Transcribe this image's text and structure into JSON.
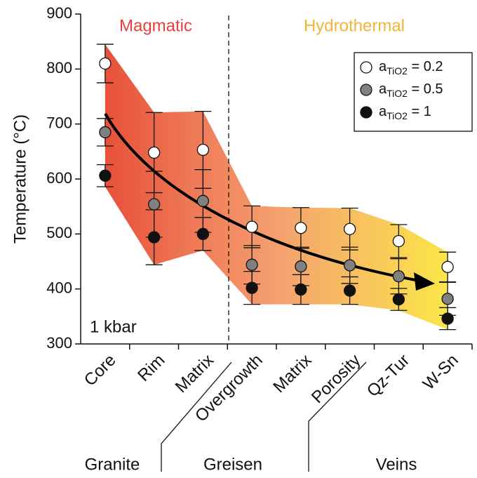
{
  "chart_data": {
    "type": "errorbar",
    "categories": [
      "Core",
      "Rim",
      "Matrix",
      "Overgrowth",
      "Matrix",
      "Porosity",
      "Qz-Tur",
      "W-Sn"
    ],
    "series": [
      {
        "name": "aTiO2 = 0.2",
        "color": "#ffffff",
        "values": [
          810,
          648,
          653,
          513,
          511,
          509,
          487,
          440
        ],
        "errors": [
          35,
          73,
          70,
          38,
          37,
          38,
          30,
          27
        ]
      },
      {
        "name": "aTiO2 = 0.5",
        "color": "#808080",
        "values": [
          685,
          554,
          560,
          444,
          441,
          443,
          423,
          382
        ],
        "errors": [
          25,
          60,
          57,
          35,
          35,
          33,
          32,
          30
        ]
      },
      {
        "name": "aTiO2 = 1",
        "color": "#111111",
        "values": [
          606,
          494,
          500,
          402,
          399,
          397,
          381,
          346
        ],
        "errors": [
          20,
          50,
          30,
          30,
          27,
          25,
          20,
          20
        ]
      }
    ],
    "ylabel": "Temperature (°C)",
    "ylim": [
      300,
      900
    ],
    "yticks": [
      300,
      400,
      500,
      600,
      700,
      800,
      900
    ],
    "regions": [
      {
        "label": "Magmatic",
        "color": "#e8403a"
      },
      {
        "label": "Hydrothermal",
        "color": "#f5b335"
      }
    ],
    "groups": [
      "Granite",
      "Greisen",
      "Veins"
    ],
    "annotation": "1 kbar",
    "legend": "top right"
  }
}
